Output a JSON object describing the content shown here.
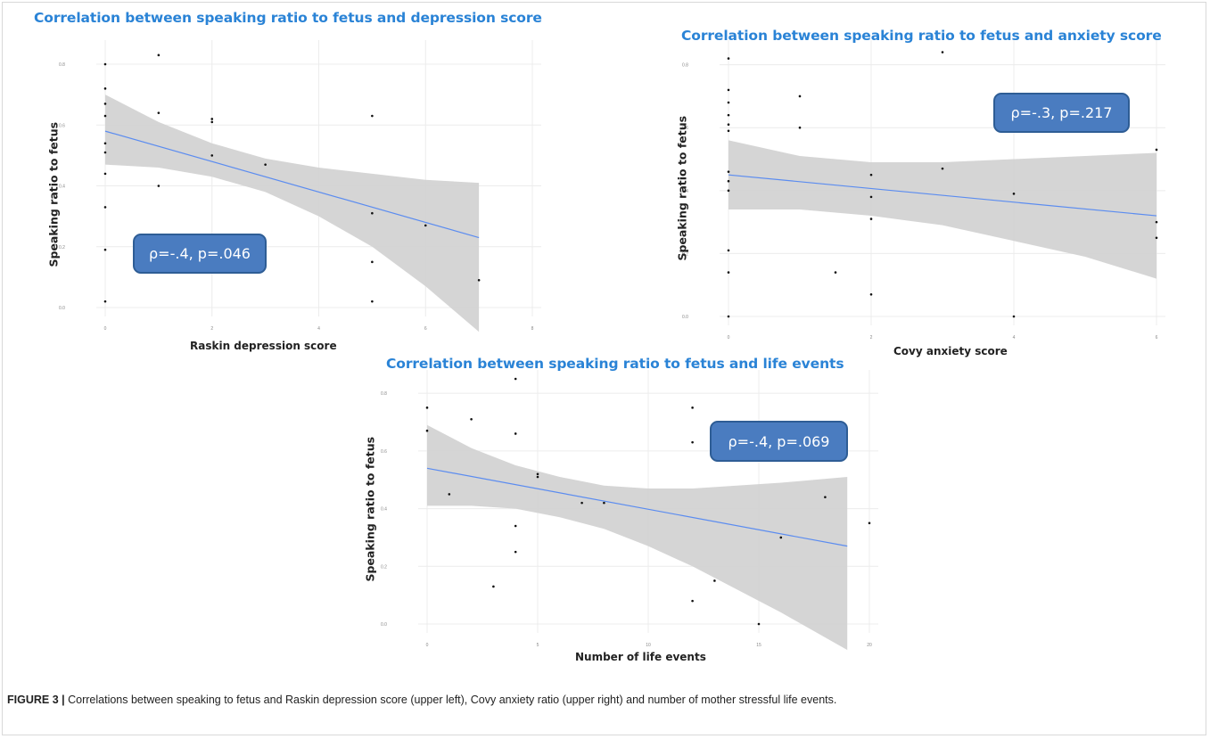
{
  "colors": {
    "title": "#2a83d6",
    "fit_line": "#5b8cf0",
    "ci_band": "#d3d3d3",
    "stat_box": "#4a7cc0",
    "points": "#111111"
  },
  "caption": {
    "label": "FIGURE 3 |",
    "text": "Correlations between speaking to fetus and Raskin depression score (upper left), Covy anxiety ratio (upper right) and number of mother stressful life events."
  },
  "chart_data": [
    {
      "type": "scatter",
      "title": "Correlation between speaking ratio to fetus and depression score",
      "xlabel": "Raskin depression score",
      "ylabel": "Speaking ratio to fetus",
      "annotation": "ρ=-.4, p=.046",
      "xlim": [
        0,
        8
      ],
      "ylim": [
        0,
        0.85
      ],
      "xticks": [
        "0",
        "2",
        "4",
        "6",
        "8"
      ],
      "yticks": [
        "0.0",
        "0.2",
        "0.4",
        "0.6",
        "0.8"
      ],
      "points": {
        "x": [
          0,
          0,
          0,
          0,
          0,
          0,
          0,
          0,
          0,
          0,
          1,
          1,
          1,
          2,
          2,
          2,
          3,
          5,
          5,
          5,
          5,
          6,
          7
        ],
        "y": [
          0.8,
          0.72,
          0.67,
          0.63,
          0.54,
          0.51,
          0.44,
          0.33,
          0.19,
          0.02,
          0.83,
          0.64,
          0.4,
          0.62,
          0.61,
          0.5,
          0.47,
          0.63,
          0.31,
          0.15,
          0.02,
          0.27,
          0.09
        ]
      },
      "fit": {
        "x": [
          0,
          7
        ],
        "y": [
          0.58,
          0.23
        ]
      },
      "ci": {
        "x": [
          0,
          1,
          2,
          3,
          4,
          5,
          6,
          7
        ],
        "lower": [
          0.47,
          0.46,
          0.43,
          0.38,
          0.3,
          0.2,
          0.07,
          -0.08
        ],
        "upper": [
          0.7,
          0.61,
          0.54,
          0.49,
          0.46,
          0.44,
          0.42,
          0.41
        ]
      }
    },
    {
      "type": "scatter",
      "title": "Correlation between speaking ratio to fetus and anxiety score",
      "xlabel": "Covy anxiety score",
      "ylabel": "Speaking ratio to fetus",
      "annotation": "ρ=-.3, p=.217",
      "xlim": [
        0,
        6
      ],
      "ylim": [
        0,
        0.85
      ],
      "xticks": [
        "0",
        "2",
        "4",
        "6"
      ],
      "yticks": [
        "0.0",
        "0.2",
        "0.4",
        "0.6",
        "0.8"
      ],
      "points": {
        "x": [
          0,
          0,
          0,
          0,
          0,
          0,
          0,
          0,
          0,
          0,
          0,
          0,
          1,
          1,
          1.5,
          2,
          2,
          2,
          2,
          3,
          3,
          4,
          4,
          6,
          6,
          6
        ],
        "y": [
          0.82,
          0.72,
          0.68,
          0.64,
          0.61,
          0.59,
          0.46,
          0.43,
          0.4,
          0.21,
          0.14,
          0.0,
          0.7,
          0.6,
          0.14,
          0.45,
          0.38,
          0.31,
          0.07,
          0.47,
          0.84,
          0.39,
          0.0,
          0.53,
          0.3,
          0.25
        ]
      },
      "fit": {
        "x": [
          0,
          6
        ],
        "y": [
          0.45,
          0.32
        ]
      },
      "ci": {
        "x": [
          0,
          1,
          2,
          3,
          4,
          5,
          6
        ],
        "lower": [
          0.34,
          0.34,
          0.32,
          0.29,
          0.24,
          0.19,
          0.12
        ],
        "upper": [
          0.56,
          0.51,
          0.49,
          0.49,
          0.5,
          0.51,
          0.52
        ]
      }
    },
    {
      "type": "scatter",
      "title": "Correlation between speaking ratio to fetus and life events",
      "xlabel": "Number of life events",
      "ylabel": "Speaking ratio to fetus",
      "annotation": "ρ=-.4, p=.069",
      "xlim": [
        0,
        20
      ],
      "ylim": [
        0,
        0.85
      ],
      "xticks": [
        "0",
        "5",
        "10",
        "15",
        "20"
      ],
      "yticks": [
        "0.0",
        "0.2",
        "0.4",
        "0.6",
        "0.8"
      ],
      "points": {
        "x": [
          0,
          0,
          1,
          2,
          3,
          4,
          4,
          4,
          4,
          5,
          5,
          7,
          8,
          12,
          12,
          12,
          13,
          13,
          13,
          15,
          16,
          18,
          20
        ],
        "y": [
          0.75,
          0.67,
          0.45,
          0.71,
          0.13,
          0.66,
          0.25,
          0.34,
          0.85,
          0.52,
          0.51,
          0.42,
          0.42,
          0.75,
          0.63,
          0.08,
          0.65,
          0.61,
          0.15,
          0.0,
          0.3,
          0.44,
          0.35
        ]
      },
      "fit": {
        "x": [
          0,
          19
        ],
        "y": [
          0.54,
          0.27
        ]
      },
      "ci": {
        "x": [
          0,
          2,
          4,
          6,
          8,
          10,
          12,
          14,
          16,
          19
        ],
        "lower": [
          0.41,
          0.41,
          0.4,
          0.37,
          0.33,
          0.27,
          0.2,
          0.12,
          0.04,
          -0.09
        ],
        "upper": [
          0.69,
          0.61,
          0.55,
          0.51,
          0.48,
          0.47,
          0.47,
          0.48,
          0.49,
          0.51
        ]
      }
    }
  ]
}
